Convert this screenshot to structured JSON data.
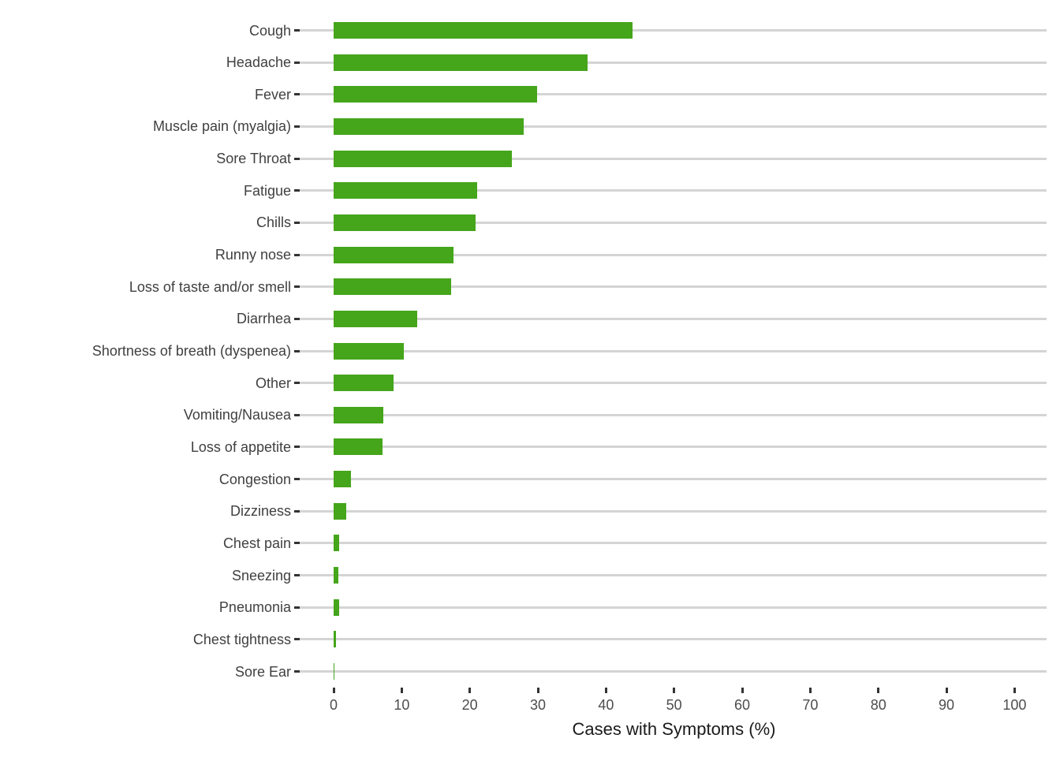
{
  "chart_data": {
    "type": "bar",
    "orientation": "horizontal",
    "title": "",
    "xlabel": "Cases with Symptoms (%)",
    "ylabel": "",
    "xlim": [
      0,
      100
    ],
    "xticks": [
      0,
      10,
      20,
      30,
      40,
      50,
      60,
      70,
      80,
      90,
      100
    ],
    "grid": "horizontal-major-only",
    "legend": "none",
    "categories": [
      "Cough",
      "Headache",
      "Fever",
      "Muscle pain (myalgia)",
      "Sore Throat",
      "Fatigue",
      "Chills",
      "Runny nose",
      "Loss of taste and/or smell",
      "Diarrhea",
      "Shortness of breath (dyspenea)",
      "Other",
      "Vomiting/Nausea",
      "Loss of appetite",
      "Congestion",
      "Dizziness",
      "Chest pain",
      "Sneezing",
      "Pneumonia",
      "Chest tightness",
      "Sore Ear"
    ],
    "values": [
      43.9,
      37.3,
      29.9,
      27.9,
      26.2,
      21.1,
      20.8,
      17.6,
      17.3,
      12.3,
      10.3,
      8.8,
      7.3,
      7.2,
      2.5,
      1.9,
      0.8,
      0.7,
      0.8,
      0.4,
      0.15
    ]
  },
  "colors": {
    "bar": "#45A51B",
    "gridline": "#D4D4D4",
    "axis_tick": "#333333",
    "category_label": "#404040",
    "tick_label": "#4D4D4D",
    "axis_title": "#1A1A1A",
    "background": "#FFFFFF"
  }
}
